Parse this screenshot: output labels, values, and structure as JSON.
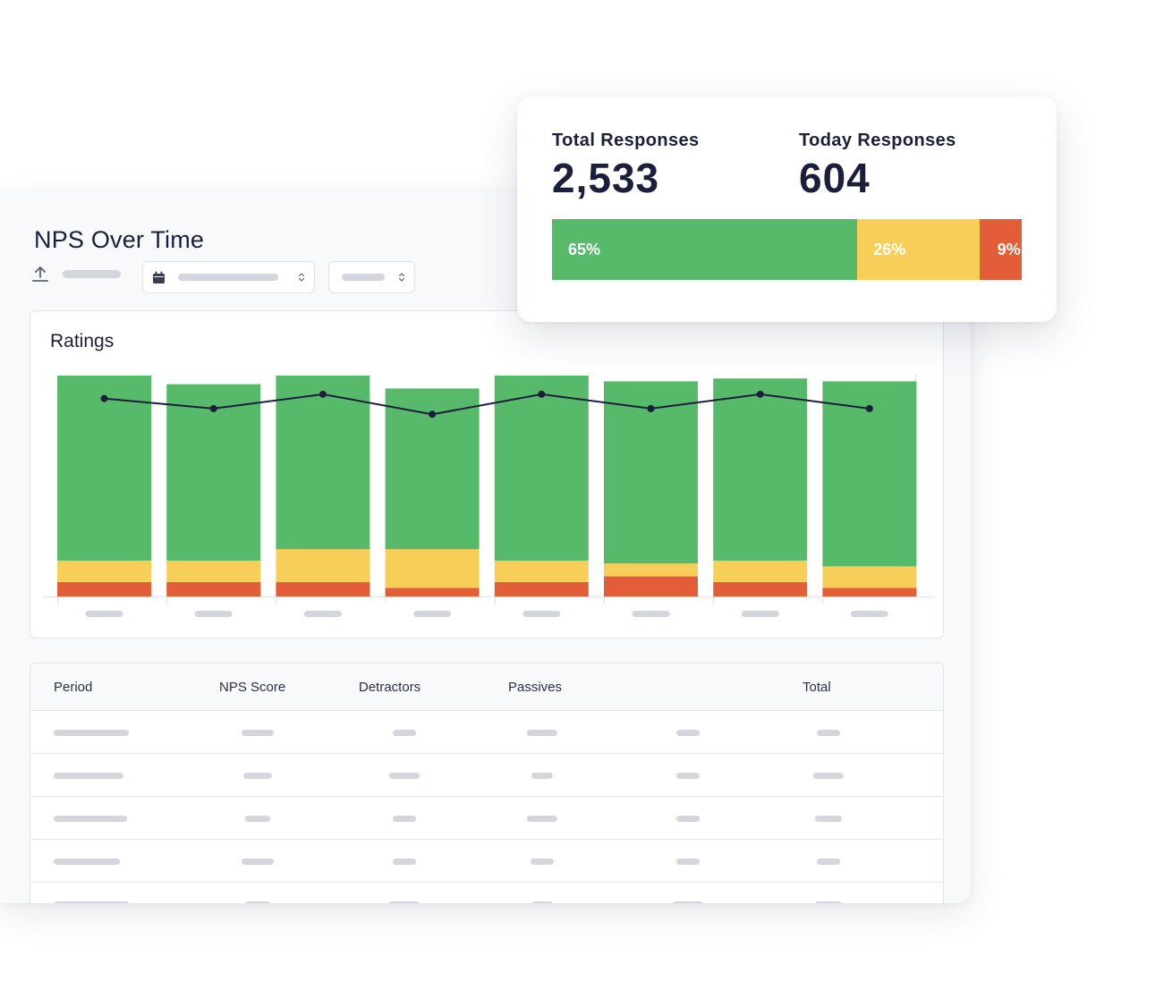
{
  "page": {
    "title": "NPS Over Time"
  },
  "colors": {
    "promoters": "#57b96a",
    "passives": "#f6ce58",
    "detractors": "#e35d38",
    "line": "#1b1f3b"
  },
  "ratings_chart": {
    "title": "Ratings"
  },
  "chart_data": {
    "type": "bar",
    "stacked": true,
    "title": "Ratings",
    "categories": [
      "",
      "",
      "",
      "",
      "",
      "",
      "",
      ""
    ],
    "series": [
      {
        "values": [
          10,
          10,
          10,
          6,
          10,
          14,
          10,
          6
        ]
      },
      {
        "values": [
          15,
          15,
          23,
          27,
          15,
          9,
          15,
          15
        ]
      },
      {
        "values": [
          129,
          123,
          121,
          112,
          129,
          127,
          127,
          129
        ]
      }
    ],
    "line_values": [
      138,
      131,
      141,
      127,
      141,
      131,
      141,
      131
    ],
    "ylim": [
      0,
      154
    ],
    "grid": false,
    "legend": "none"
  },
  "stats": {
    "total_label": "Total Responses",
    "total_value": "2,533",
    "today_label": "Today Responses",
    "today_value": "604",
    "distribution": [
      {
        "label": "65%",
        "value": 65
      },
      {
        "label": "26%",
        "value": 26
      },
      {
        "label": "9%",
        "value": 9
      }
    ]
  },
  "table": {
    "columns": [
      "Period",
      "NPS Score",
      "Detractors",
      "Passives",
      "",
      "Total"
    ],
    "row_count": 5
  }
}
